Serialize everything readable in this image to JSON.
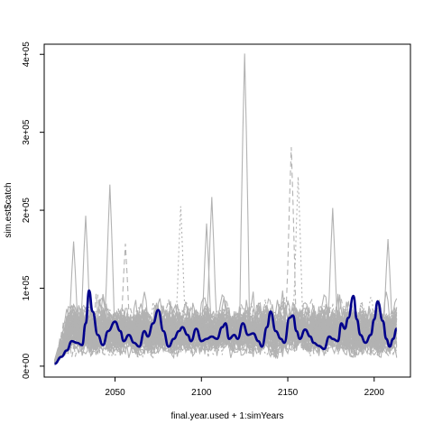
{
  "chart_data": {
    "type": "line",
    "title": "",
    "xlabel": "final.year.used + 1:simYears",
    "ylabel": "sim.est$catch",
    "xlim": [
      2009,
      2221
    ],
    "ylim": [
      -14000,
      413000
    ],
    "x_ticks": [
      2050,
      2100,
      2150,
      2200
    ],
    "x_tick_labels": [
      "2050",
      "2100",
      "2150",
      "2200"
    ],
    "y_ticks": [
      0,
      100000,
      200000,
      300000,
      400000
    ],
    "y_tick_labels": [
      "0e+00",
      "1e+05",
      "2e+05",
      "3e+05",
      "4e+05"
    ],
    "grid": false,
    "legend": "none",
    "x_start": 2015,
    "x_end": 2213,
    "x_step": 1,
    "colors": {
      "simulation": "#b2b2b2",
      "median": "#00008b",
      "axes": "#000000"
    },
    "simulation_envelope": {
      "description_color": "#b2b2b2",
      "count": 60,
      "baseline": 20000,
      "typical_high": 70000,
      "max_band": 110000,
      "notable_peaks": [
        {
          "x": 2026,
          "y": 160000
        },
        {
          "x": 2033,
          "y": 193000
        },
        {
          "x": 2047,
          "y": 233000
        },
        {
          "x": 2056,
          "y": 157000
        },
        {
          "x": 2088,
          "y": 205000
        },
        {
          "x": 2103,
          "y": 183000
        },
        {
          "x": 2106,
          "y": 217000
        },
        {
          "x": 2125,
          "y": 401000
        },
        {
          "x": 2152,
          "y": 281000
        },
        {
          "x": 2156,
          "y": 243000
        },
        {
          "x": 2176,
          "y": 203000
        },
        {
          "x": 2208,
          "y": 163000
        }
      ]
    },
    "series": [
      {
        "role": "median",
        "style": "solid-thick",
        "points": [
          [
            2015,
            3000
          ],
          [
            2019,
            12000
          ],
          [
            2022,
            20000
          ],
          [
            2025,
            32000
          ],
          [
            2028,
            30000
          ],
          [
            2031,
            27000
          ],
          [
            2033,
            55000
          ],
          [
            2035,
            97000
          ],
          [
            2037,
            70000
          ],
          [
            2040,
            40000
          ],
          [
            2043,
            27000
          ],
          [
            2046,
            45000
          ],
          [
            2050,
            57000
          ],
          [
            2053,
            45000
          ],
          [
            2055,
            32000
          ],
          [
            2058,
            40000
          ],
          [
            2061,
            30000
          ],
          [
            2064,
            25000
          ],
          [
            2067,
            45000
          ],
          [
            2069,
            38000
          ],
          [
            2072,
            55000
          ],
          [
            2075,
            72000
          ],
          [
            2078,
            45000
          ],
          [
            2081,
            25000
          ],
          [
            2084,
            35000
          ],
          [
            2087,
            45000
          ],
          [
            2089,
            50000
          ],
          [
            2092,
            40000
          ],
          [
            2094,
            32000
          ],
          [
            2097,
            48000
          ],
          [
            2100,
            32000
          ],
          [
            2103,
            35000
          ],
          [
            2106,
            38000
          ],
          [
            2109,
            35000
          ],
          [
            2112,
            50000
          ],
          [
            2114,
            55000
          ],
          [
            2116,
            35000
          ],
          [
            2119,
            40000
          ],
          [
            2121,
            35000
          ],
          [
            2124,
            55000
          ],
          [
            2127,
            40000
          ],
          [
            2130,
            42000
          ],
          [
            2133,
            32000
          ],
          [
            2135,
            25000
          ],
          [
            2138,
            50000
          ],
          [
            2140,
            70000
          ],
          [
            2143,
            45000
          ],
          [
            2146,
            35000
          ],
          [
            2148,
            30000
          ],
          [
            2151,
            62000
          ],
          [
            2153,
            65000
          ],
          [
            2155,
            45000
          ],
          [
            2157,
            35000
          ],
          [
            2160,
            47000
          ],
          [
            2163,
            38000
          ],
          [
            2165,
            30000
          ],
          [
            2168,
            26000
          ],
          [
            2171,
            22000
          ],
          [
            2174,
            38000
          ],
          [
            2176,
            35000
          ],
          [
            2179,
            32000
          ],
          [
            2181,
            55000
          ],
          [
            2183,
            48000
          ],
          [
            2185,
            62000
          ],
          [
            2188,
            90000
          ],
          [
            2190,
            60000
          ],
          [
            2192,
            40000
          ],
          [
            2195,
            30000
          ],
          [
            2198,
            40000
          ],
          [
            2200,
            60000
          ],
          [
            2202,
            83000
          ],
          [
            2205,
            58000
          ],
          [
            2207,
            35000
          ],
          [
            2209,
            25000
          ],
          [
            2211,
            35000
          ],
          [
            2213,
            48000
          ]
        ]
      }
    ]
  }
}
